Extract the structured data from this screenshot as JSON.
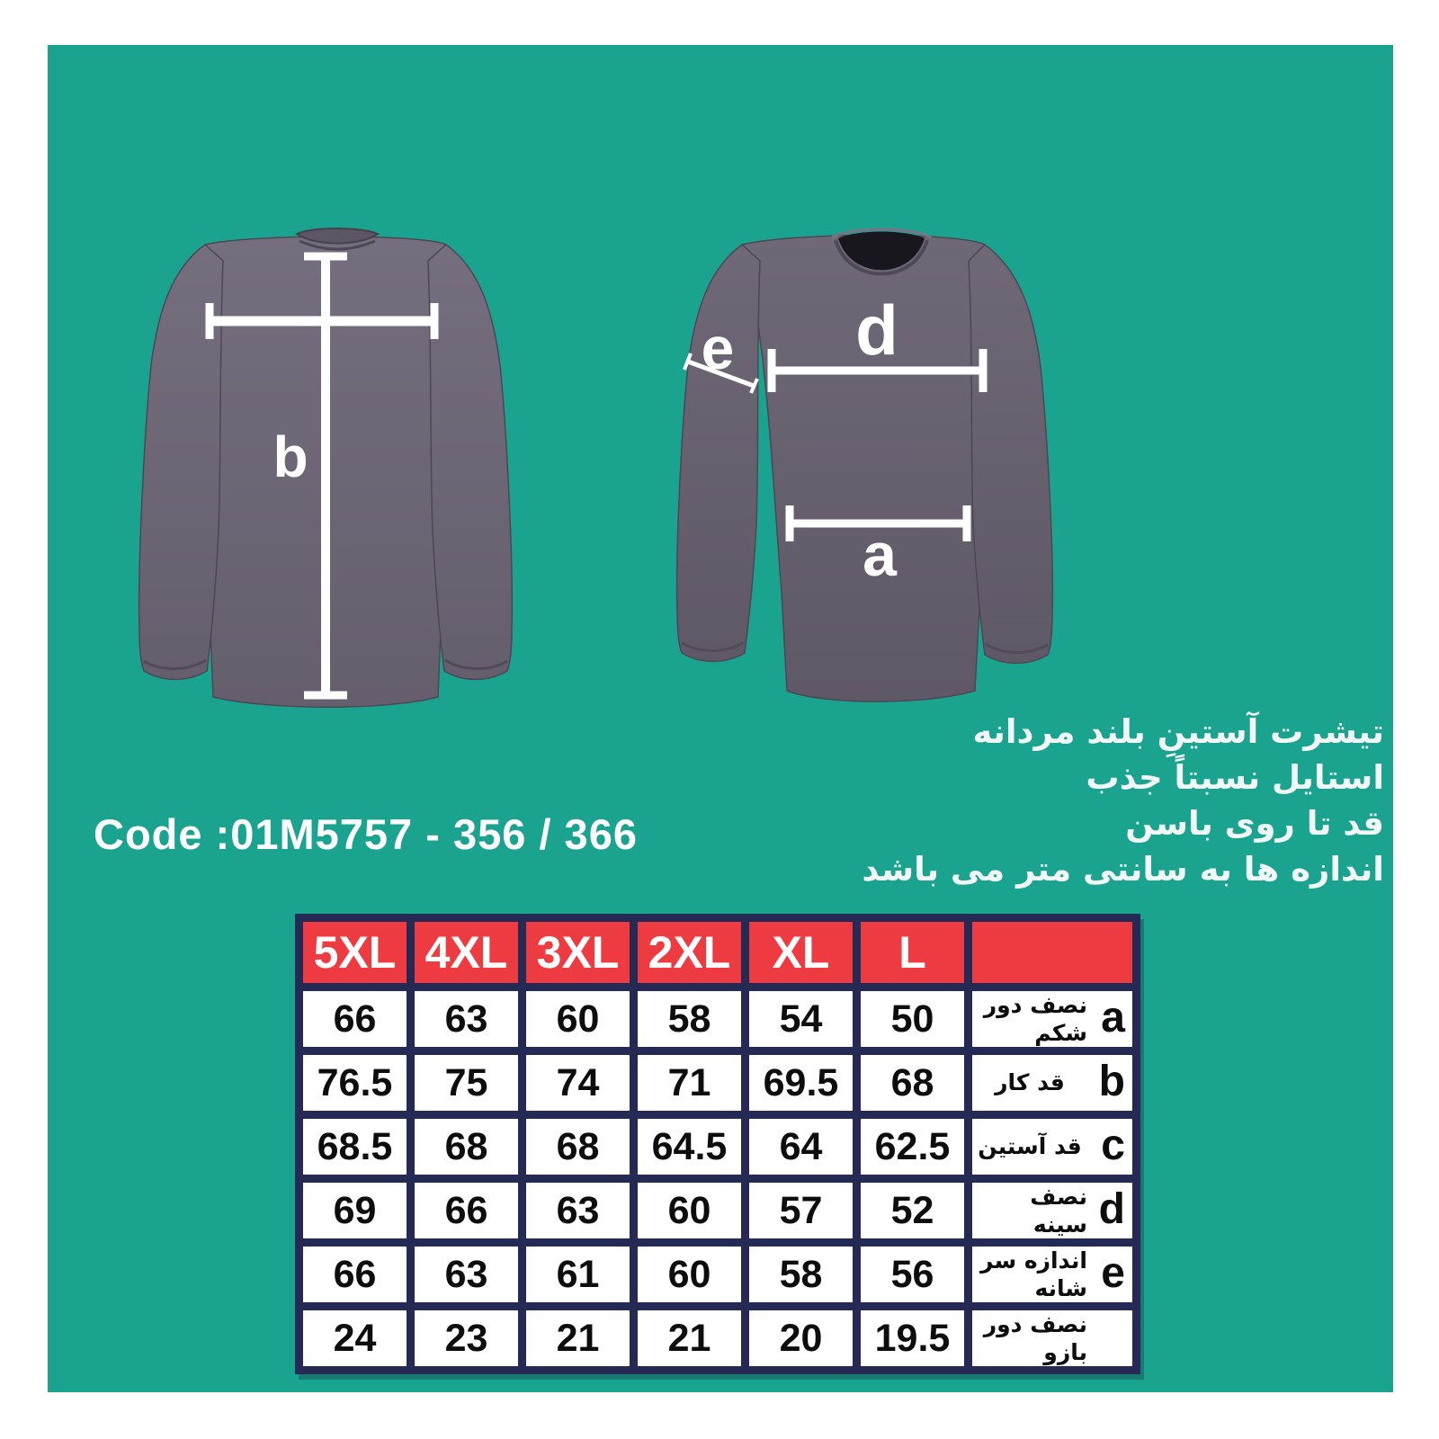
{
  "colors": {
    "page_background": "#ffffff",
    "panel": "#1AA48F",
    "table_header": "#EE3B41",
    "table_grid": "#242A54",
    "shirt_gray": "#6A6372",
    "measure_white": "#ffffff"
  },
  "product": {
    "code_label": "Code :01M5757 - 356 / 366",
    "description_lines": [
      "تیشرت آستینِ بلند مردانه",
      "استایل نسبتاً جذب",
      "قد تا روی باسن",
      "اندازه ها به سانتی متر می باشد"
    ]
  },
  "diagram": {
    "labels": {
      "a": "a",
      "b": "b",
      "d": "d",
      "e": "e"
    }
  },
  "size_table": {
    "header": [
      "5XL",
      "4XL",
      "3XL",
      "2XL",
      "XL",
      "L"
    ],
    "rows": [
      {
        "letter": "a",
        "label": "نصف دور شکم",
        "values": [
          "66",
          "63",
          "60",
          "58",
          "54",
          "50"
        ]
      },
      {
        "letter": "b",
        "label": "قد کار",
        "values": [
          "76.5",
          "75",
          "74",
          "71",
          "69.5",
          "68"
        ]
      },
      {
        "letter": "c",
        "label": "قد آستین",
        "values": [
          "68.5",
          "68",
          "68",
          "64.5",
          "64",
          "62.5"
        ]
      },
      {
        "letter": "d",
        "label": "نصف سینه",
        "values": [
          "69",
          "66",
          "63",
          "60",
          "57",
          "52"
        ]
      },
      {
        "letter": "e",
        "label": "اندازه سر شانه",
        "values": [
          "66",
          "63",
          "61",
          "60",
          "58",
          "56"
        ]
      },
      {
        "letter": "",
        "label": "نصف دور بازو",
        "values": [
          "24",
          "23",
          "21",
          "21",
          "20",
          "19.5"
        ]
      }
    ]
  }
}
